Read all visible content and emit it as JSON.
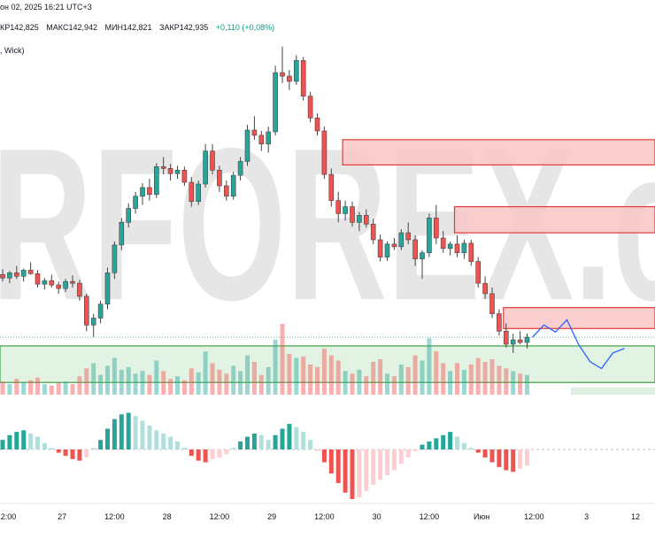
{
  "header": {
    "line1": "он 02, 2025 16:21 UTC+3",
    "open": "КР142,825",
    "high": "МАКС142,942",
    "low": "МИН142,821",
    "close": "ЗАКР142,935",
    "change": "+0,110 (+0,08%)",
    "line3": ", Wick)"
  },
  "watermark": "RFOREX.c",
  "colors": {
    "bull": "#26a69a",
    "bear": "#ef5350",
    "bull_light": "#b2dfdb",
    "bear_light": "#ffcdd2",
    "supply_zone": "#f8c6c6",
    "supply_border": "#e53935",
    "demand_zone": "#d6eed9",
    "demand_border": "#43a047",
    "projection": "#2962ff",
    "watermark": "#e6e6e6"
  },
  "chart_data": {
    "type": "candlestick",
    "series": [
      {
        "name": "price",
        "ohlc": [
          [
            142.2,
            142.26,
            142.12,
            142.16
          ],
          [
            142.16,
            142.24,
            142.1,
            142.22
          ],
          [
            142.22,
            142.3,
            142.15,
            142.18
          ],
          [
            142.18,
            142.27,
            142.12,
            142.25
          ],
          [
            142.25,
            142.34,
            142.2,
            142.21
          ],
          [
            142.21,
            142.25,
            142.05,
            142.09
          ],
          [
            142.09,
            142.16,
            142.03,
            142.13
          ],
          [
            142.13,
            142.2,
            142.05,
            142.08
          ],
          [
            142.08,
            142.12,
            141.98,
            142.04
          ],
          [
            142.04,
            142.15,
            142.0,
            142.12
          ],
          [
            142.12,
            142.19,
            142.05,
            142.1
          ],
          [
            142.1,
            142.14,
            141.9,
            141.95
          ],
          [
            141.95,
            141.98,
            141.55,
            141.62
          ],
          [
            141.62,
            141.75,
            141.48,
            141.7
          ],
          [
            141.7,
            141.9,
            141.64,
            141.86
          ],
          [
            141.86,
            142.28,
            141.8,
            142.22
          ],
          [
            142.22,
            142.58,
            142.15,
            142.54
          ],
          [
            142.54,
            142.85,
            142.48,
            142.8
          ],
          [
            142.8,
            143.02,
            142.74,
            142.96
          ],
          [
            142.96,
            143.15,
            142.9,
            143.1
          ],
          [
            143.1,
            143.25,
            143.0,
            143.2
          ],
          [
            143.2,
            143.3,
            143.05,
            143.12
          ],
          [
            143.12,
            143.48,
            143.08,
            143.44
          ],
          [
            143.44,
            143.55,
            143.35,
            143.42
          ],
          [
            143.42,
            143.47,
            143.28,
            143.36
          ],
          [
            143.36,
            143.45,
            143.3,
            143.4
          ],
          [
            143.4,
            143.44,
            143.22,
            143.26
          ],
          [
            143.26,
            143.32,
            142.98,
            143.04
          ],
          [
            143.04,
            143.28,
            143.0,
            143.24
          ],
          [
            143.24,
            143.7,
            143.2,
            143.62
          ],
          [
            143.62,
            143.7,
            143.35,
            143.4
          ],
          [
            143.4,
            143.45,
            143.15,
            143.22
          ],
          [
            143.22,
            143.28,
            143.05,
            143.1
          ],
          [
            143.1,
            143.38,
            143.06,
            143.34
          ],
          [
            143.34,
            143.55,
            143.28,
            143.5
          ],
          [
            143.5,
            143.92,
            143.45,
            143.86
          ],
          [
            143.86,
            144.02,
            143.75,
            143.8
          ],
          [
            143.8,
            143.85,
            143.62,
            143.7
          ],
          [
            143.7,
            143.9,
            143.6,
            143.84
          ],
          [
            143.84,
            144.6,
            143.8,
            144.52
          ],
          [
            144.52,
            144.82,
            144.4,
            144.48
          ],
          [
            144.48,
            144.55,
            144.32,
            144.42
          ],
          [
            144.42,
            144.72,
            144.38,
            144.66
          ],
          [
            144.66,
            144.7,
            144.2,
            144.25
          ],
          [
            144.25,
            144.3,
            143.95,
            144.0
          ],
          [
            144.0,
            144.05,
            143.8,
            143.85
          ],
          [
            143.85,
            143.9,
            143.3,
            143.35
          ],
          [
            143.35,
            143.42,
            142.98,
            143.05
          ],
          [
            143.05,
            143.15,
            142.8,
            142.9
          ],
          [
            142.9,
            143.05,
            142.82,
            142.98
          ],
          [
            142.98,
            143.04,
            142.75,
            142.8
          ],
          [
            142.8,
            142.92,
            142.7,
            142.88
          ],
          [
            142.88,
            142.95,
            142.74,
            142.78
          ],
          [
            142.78,
            142.84,
            142.55,
            142.6
          ],
          [
            142.6,
            142.66,
            142.35,
            142.4
          ],
          [
            142.4,
            142.58,
            142.36,
            142.55
          ],
          [
            142.55,
            142.62,
            142.48,
            142.52
          ],
          [
            142.52,
            142.72,
            142.48,
            142.68
          ],
          [
            142.68,
            142.8,
            142.55,
            142.6
          ],
          [
            142.6,
            142.65,
            142.3,
            142.38
          ],
          [
            142.38,
            142.48,
            142.15,
            142.45
          ],
          [
            142.45,
            142.9,
            142.4,
            142.85
          ],
          [
            142.85,
            143.0,
            142.55,
            142.62
          ],
          [
            142.62,
            142.7,
            142.45,
            142.5
          ],
          [
            142.5,
            142.58,
            142.42,
            142.55
          ],
          [
            142.55,
            142.65,
            142.4,
            142.45
          ],
          [
            142.45,
            142.6,
            142.38,
            142.56
          ],
          [
            142.56,
            142.6,
            142.3,
            142.35
          ],
          [
            142.35,
            142.4,
            142.05,
            142.1
          ],
          [
            142.1,
            142.18,
            141.92,
            141.98
          ],
          [
            141.98,
            142.05,
            141.7,
            141.75
          ],
          [
            141.75,
            141.8,
            141.5,
            141.55
          ],
          [
            141.55,
            141.64,
            141.36,
            141.4
          ],
          [
            141.4,
            141.52,
            141.3,
            141.45
          ],
          [
            141.45,
            141.55,
            141.4,
            141.42
          ],
          [
            141.42,
            141.52,
            141.35,
            141.48
          ]
        ]
      },
      {
        "name": "volume",
        "values": [
          1.0,
          0.8,
          1.2,
          0.9,
          1.1,
          1.3,
          0.8,
          0.7,
          0.9,
          1.0,
          0.8,
          1.4,
          2.0,
          2.4,
          1.5,
          2.2,
          2.8,
          1.9,
          2.1,
          1.6,
          1.8,
          1.5,
          2.6,
          1.8,
          1.2,
          1.4,
          1.1,
          2.0,
          1.7,
          3.3,
          2.4,
          1.9,
          1.6,
          2.2,
          1.8,
          3.0,
          2.5,
          1.5,
          2.1,
          4.2,
          5.4,
          3.1,
          2.8,
          2.9,
          2.3,
          2.1,
          3.5,
          3.0,
          2.6,
          1.8,
          1.6,
          1.9,
          1.4,
          2.5,
          2.7,
          1.6,
          1.4,
          2.3,
          2.1,
          3.0,
          2.6,
          4.3,
          3.3,
          2.4,
          1.8,
          2.4,
          1.9,
          2.3,
          2.8,
          2.5,
          2.7,
          2.2,
          2.0,
          1.8,
          1.6,
          1.5
        ]
      },
      {
        "name": "oscillator",
        "values": [
          0.3,
          0.45,
          0.55,
          0.6,
          0.5,
          0.4,
          0.2,
          0.05,
          -0.1,
          -0.2,
          -0.3,
          -0.35,
          -0.25,
          0.05,
          0.3,
          0.65,
          0.95,
          1.1,
          1.15,
          1.05,
          0.9,
          0.75,
          0.6,
          0.5,
          0.4,
          0.25,
          0.05,
          -0.2,
          -0.35,
          -0.4,
          -0.3,
          -0.25,
          -0.15,
          0.05,
          0.25,
          0.4,
          0.5,
          0.45,
          0.3,
          0.45,
          0.65,
          0.8,
          0.7,
          0.55,
          0.3,
          -0.05,
          -0.4,
          -0.75,
          -1.05,
          -1.35,
          -1.55,
          -1.5,
          -1.3,
          -1.1,
          -0.95,
          -0.8,
          -0.65,
          -0.45,
          -0.25,
          -0.05,
          0.15,
          0.25,
          0.35,
          0.45,
          0.55,
          0.4,
          0.2,
          0.05,
          -0.1,
          -0.25,
          -0.4,
          -0.55,
          -0.65,
          -0.7,
          -0.6,
          -0.5
        ]
      },
      {
        "name": "projection",
        "points": [
          [
            0,
            141.48
          ],
          [
            1,
            141.62
          ],
          [
            2,
            141.54
          ],
          [
            3,
            141.68
          ],
          [
            4,
            141.4
          ],
          [
            5,
            141.2
          ],
          [
            6,
            141.12
          ],
          [
            7,
            141.3
          ],
          [
            8,
            141.35
          ]
        ]
      }
    ],
    "zones": [
      {
        "kind": "supply",
        "y_low": 143.46,
        "y_high": 143.75,
        "start_index": 49
      },
      {
        "kind": "supply",
        "y_low": 142.68,
        "y_high": 142.98,
        "start_index": 65
      },
      {
        "kind": "supply",
        "y_low": 141.58,
        "y_high": 141.82,
        "start_index": 72
      },
      {
        "kind": "demand",
        "y_low": 140.96,
        "y_high": 141.38,
        "start_index": 0
      }
    ],
    "x_ticks": [
      {
        "label": "12:00",
        "index": 0.5
      },
      {
        "label": "27",
        "index": 8.5
      },
      {
        "label": "12:00",
        "index": 16
      },
      {
        "label": "28",
        "index": 23.5
      },
      {
        "label": "12:00",
        "index": 31
      },
      {
        "label": "29",
        "index": 38.5
      },
      {
        "label": "12:00",
        "index": 46
      },
      {
        "label": "30",
        "index": 53.5
      },
      {
        "label": "12:00",
        "index": 61
      },
      {
        "label": "Июн",
        "index": 68.5
      },
      {
        "label": "12:00",
        "index": 76
      },
      {
        "label": "3",
        "index": 83.5
      },
      {
        "label": "12",
        "index": 90.5
      }
    ],
    "title": "",
    "xlabel": "",
    "ylabel": "",
    "ylim": [
      140.8,
      145.05
    ],
    "grid": false
  }
}
